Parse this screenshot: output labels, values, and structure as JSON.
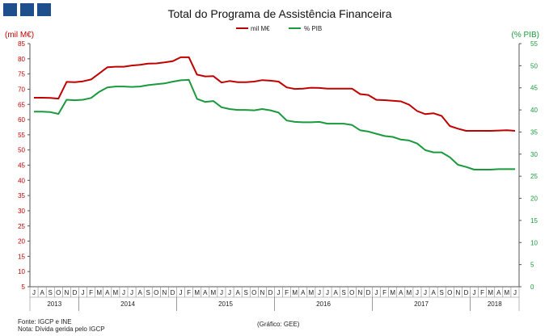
{
  "colors": {
    "series1": "#c00000",
    "series2": "#1a9a3c",
    "logo": "#1f4e8c",
    "axis": "#555555"
  },
  "footer": {
    "source": "Fonte: IGCP e INE",
    "note": "Nota: Dívida gerida pelo IGCP",
    "credit": "(Gráfico: GEE)"
  },
  "chart_data": {
    "type": "line",
    "title": "Total do Programa de Assistência Financeira",
    "y_left_label": "(mil M€)",
    "y_right_label": "(% PIB)",
    "y_left_lim": [
      5,
      85
    ],
    "y_right_lim": [
      0,
      55
    ],
    "y_left_ticks": [
      5,
      10,
      15,
      20,
      25,
      30,
      35,
      40,
      45,
      50,
      55,
      60,
      65,
      70,
      75,
      80,
      85
    ],
    "y_right_ticks": [
      0,
      5,
      10,
      15,
      20,
      25,
      30,
      35,
      40,
      45,
      50,
      55
    ],
    "legend_position": "top-center",
    "grid": false,
    "month_labels": [
      "J",
      "A",
      "S",
      "O",
      "N",
      "D",
      "J",
      "F",
      "M",
      "A",
      "M",
      "J",
      "J",
      "A",
      "S",
      "O",
      "N",
      "D",
      "J",
      "F",
      "M",
      "A",
      "M",
      "J",
      "J",
      "A",
      "S",
      "O",
      "N",
      "D",
      "J",
      "F",
      "M",
      "A",
      "M",
      "J",
      "J",
      "A",
      "S",
      "O",
      "N",
      "D",
      "J",
      "F",
      "M",
      "A",
      "M",
      "J",
      "J",
      "A",
      "S",
      "O",
      "N",
      "D",
      "J",
      "F",
      "M",
      "A",
      "M",
      "J"
    ],
    "years": [
      {
        "label": "2013",
        "start": 0,
        "end": 6
      },
      {
        "label": "2014",
        "start": 6,
        "end": 18
      },
      {
        "label": "2015",
        "start": 18,
        "end": 30
      },
      {
        "label": "2016",
        "start": 30,
        "end": 42
      },
      {
        "label": "2017",
        "start": 42,
        "end": 54
      },
      {
        "label": "2018",
        "start": 54,
        "end": 60
      }
    ],
    "series": [
      {
        "name": "mil M€",
        "axis": "left",
        "values": [
          67.2,
          67.2,
          67.1,
          66.9,
          72.4,
          72.3,
          72.6,
          73.2,
          75.2,
          77.2,
          77.4,
          77.4,
          77.8,
          78.0,
          78.4,
          78.5,
          78.8,
          79.2,
          80.5,
          80.5,
          74.8,
          74.2,
          74.3,
          72.2,
          72.7,
          72.3,
          72.3,
          72.5,
          73.0,
          72.8,
          72.5,
          70.6,
          70.1,
          70.2,
          70.5,
          70.4,
          70.2,
          70.2,
          70.2,
          70.2,
          68.4,
          68.1,
          66.5,
          66.4,
          66.2,
          66.0,
          64.9,
          62.8,
          61.8,
          62.1,
          61.2,
          57.9,
          57.0,
          56.3,
          56.3,
          56.3,
          56.3,
          56.4,
          56.5,
          56.3
        ]
      },
      {
        "name": "% PIB",
        "axis": "right",
        "values": [
          39.6,
          39.6,
          39.5,
          39.1,
          42.3,
          42.2,
          42.3,
          42.7,
          44.1,
          45.1,
          45.3,
          45.3,
          45.2,
          45.3,
          45.6,
          45.8,
          46.0,
          46.4,
          46.7,
          46.8,
          42.5,
          41.8,
          42.0,
          40.6,
          40.2,
          40.0,
          40.0,
          39.9,
          40.2,
          39.9,
          39.4,
          37.6,
          37.3,
          37.2,
          37.2,
          37.3,
          36.9,
          36.9,
          36.9,
          36.6,
          35.4,
          35.1,
          34.6,
          34.1,
          33.9,
          33.3,
          33.1,
          32.4,
          30.9,
          30.4,
          30.4,
          29.3,
          27.6,
          27.1,
          26.5,
          26.5,
          26.5,
          26.6,
          26.6,
          26.6
        ]
      }
    ]
  }
}
